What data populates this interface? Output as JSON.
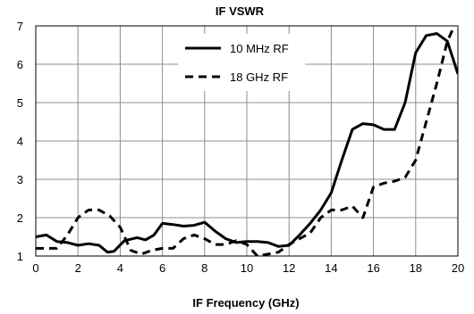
{
  "chart_data": {
    "type": "line",
    "title": "IF VSWR",
    "xlabel": "IF Frequency (GHz)",
    "ylabel": "",
    "xlim": [
      0,
      20
    ],
    "ylim": [
      1,
      7
    ],
    "xticks": [
      0,
      2,
      4,
      6,
      8,
      10,
      12,
      14,
      16,
      18,
      20
    ],
    "yticks": [
      1,
      2,
      3,
      4,
      5,
      6,
      7
    ],
    "grid": true,
    "legend_position": "top-center",
    "series": [
      {
        "name": "10 MHz RF",
        "style": "solid",
        "color": "#000000",
        "x": [
          0,
          0.5,
          1,
          1.5,
          2,
          2.5,
          3,
          3.4,
          3.7,
          4.2,
          4.8,
          5.2,
          5.6,
          6.0,
          6.5,
          7.0,
          7.5,
          8.0,
          8.5,
          9.0,
          9.5,
          10.0,
          10.5,
          11.0,
          11.5,
          12.0,
          12.5,
          13.0,
          13.5,
          14.0,
          14.5,
          15.0,
          15.5,
          16.0,
          16.5,
          17.0,
          17.5,
          18.0,
          18.5,
          19.0,
          19.5,
          20.0
        ],
        "values": [
          1.5,
          1.55,
          1.38,
          1.35,
          1.28,
          1.32,
          1.28,
          1.1,
          1.12,
          1.4,
          1.48,
          1.42,
          1.55,
          1.85,
          1.82,
          1.78,
          1.8,
          1.88,
          1.65,
          1.45,
          1.35,
          1.38,
          1.38,
          1.35,
          1.25,
          1.28,
          1.55,
          1.85,
          2.2,
          2.65,
          3.5,
          4.3,
          4.45,
          4.42,
          4.3,
          4.3,
          5.0,
          6.3,
          6.75,
          6.8,
          6.6,
          5.75
        ]
      },
      {
        "name": "18 GHz RF",
        "style": "dashed",
        "color": "#000000",
        "x": [
          0,
          0.5,
          1,
          1.5,
          2,
          2.5,
          3,
          3.5,
          4,
          4.5,
          5,
          5.5,
          6,
          6.5,
          7,
          7.5,
          8,
          8.5,
          9,
          9.5,
          10,
          10.5,
          11,
          11.5,
          12,
          12.5,
          13,
          13.5,
          14,
          14.5,
          15,
          15.5,
          16,
          16.5,
          17,
          17.5,
          18,
          18.5,
          19,
          19.5,
          20
        ],
        "values": [
          1.2,
          1.2,
          1.2,
          1.55,
          2.0,
          2.2,
          2.2,
          2.05,
          1.75,
          1.15,
          1.05,
          1.15,
          1.2,
          1.2,
          1.45,
          1.55,
          1.45,
          1.3,
          1.3,
          1.4,
          1.3,
          1.0,
          1.05,
          1.1,
          1.3,
          1.45,
          1.6,
          2.0,
          2.2,
          2.2,
          2.3,
          2.0,
          2.8,
          2.9,
          2.95,
          3.05,
          3.5,
          4.5,
          5.5,
          6.6,
          7.2
        ]
      }
    ]
  }
}
